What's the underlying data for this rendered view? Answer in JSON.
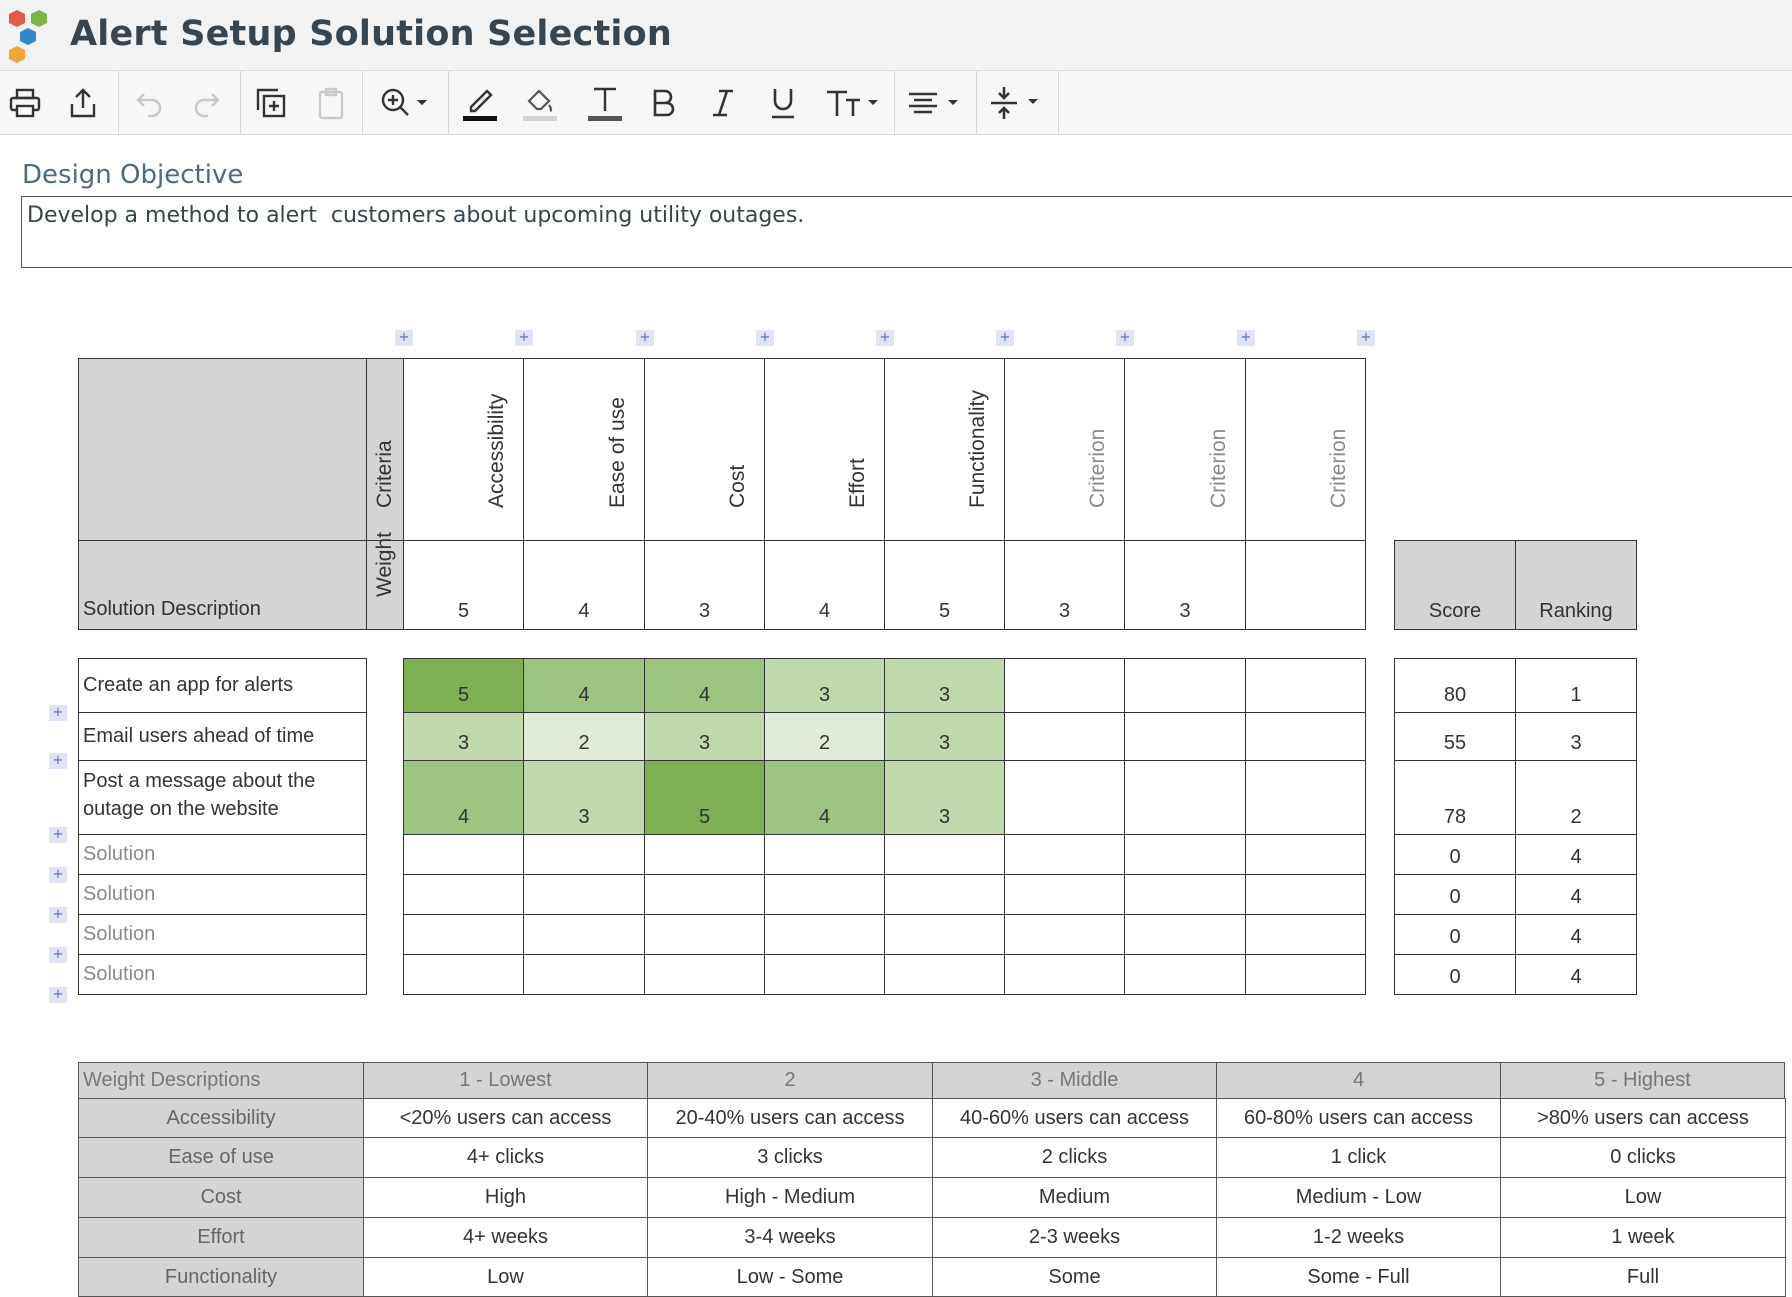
{
  "app": {
    "title": "Alert Setup Solution Selection"
  },
  "toolbar": {
    "buttons": [
      "print-icon",
      "share-icon",
      "undo-icon",
      "redo-icon",
      "duplicate-icon",
      "paste-icon",
      "zoom-icon",
      "pen-color-icon",
      "highlight-icon",
      "text-color-icon",
      "bold-icon",
      "italic-icon",
      "underline-icon",
      "font-size-icon",
      "align-icon",
      "spacing-icon"
    ]
  },
  "objective": {
    "heading": "Design Objective",
    "text": "Develop a method to alert  customers about upcoming utility outages."
  },
  "matrix": {
    "criteria_label": "Criteria",
    "weight_label": "Weight",
    "solution_header": "Solution Description",
    "score_header": "Score",
    "ranking_header": "Ranking",
    "criteria": [
      {
        "name": "Accessibility",
        "weight": "5",
        "placeholder": false
      },
      {
        "name": "Ease of use",
        "weight": "4",
        "placeholder": false
      },
      {
        "name": "Cost",
        "weight": "3",
        "placeholder": false
      },
      {
        "name": "Effort",
        "weight": "4",
        "placeholder": false
      },
      {
        "name": "Functionality",
        "weight": "5",
        "placeholder": false
      },
      {
        "name": "Criterion",
        "weight": "3",
        "placeholder": true
      },
      {
        "name": "Criterion",
        "weight": "3",
        "placeholder": true
      },
      {
        "name": "Criterion",
        "weight": "",
        "placeholder": true
      }
    ],
    "solutions": [
      {
        "name": "Create an app for alerts",
        "ratings": [
          "5",
          "4",
          "4",
          "3",
          "3",
          "",
          "",
          ""
        ],
        "score": "80",
        "ranking": "1",
        "placeholder": false
      },
      {
        "name": "Email users ahead of time",
        "ratings": [
          "3",
          "2",
          "3",
          "2",
          "3",
          "",
          "",
          ""
        ],
        "score": "55",
        "ranking": "3",
        "placeholder": false
      },
      {
        "name": "Post a message about the outage on the website",
        "ratings": [
          "4",
          "3",
          "5",
          "4",
          "3",
          "",
          "",
          ""
        ],
        "score": "78",
        "ranking": "2",
        "placeholder": false
      },
      {
        "name": "Solution",
        "ratings": [
          "",
          "",
          "",
          "",
          "",
          "",
          "",
          ""
        ],
        "score": "0",
        "ranking": "4",
        "placeholder": true
      },
      {
        "name": "Solution",
        "ratings": [
          "",
          "",
          "",
          "",
          "",
          "",
          "",
          ""
        ],
        "score": "0",
        "ranking": "4",
        "placeholder": true
      },
      {
        "name": "Solution",
        "ratings": [
          "",
          "",
          "",
          "",
          "",
          "",
          "",
          ""
        ],
        "score": "0",
        "ranking": "4",
        "placeholder": true
      },
      {
        "name": "Solution",
        "ratings": [
          "",
          "",
          "",
          "",
          "",
          "",
          "",
          ""
        ],
        "score": "0",
        "ranking": "4",
        "placeholder": true
      }
    ],
    "rating_colors": {
      "5": "#7daf55",
      "4": "#9cc581",
      "3": "#bfd9ac",
      "2": "#e1ecd7"
    }
  },
  "weight_descriptions": {
    "header": [
      "Weight Descriptions",
      "1 - Lowest",
      "2",
      "3 - Middle",
      "4",
      "5 - Highest"
    ],
    "rows": [
      [
        "Accessibility",
        "<20% users can access",
        "20-40% users can access",
        "40-60% users can access",
        "60-80% users can access",
        ">80% users can access"
      ],
      [
        "Ease of use",
        "4+ clicks",
        "3 clicks",
        "2 clicks",
        "1 click",
        "0 clicks"
      ],
      [
        "Cost",
        "High",
        "High - Medium",
        "Medium",
        "Medium - Low",
        "Low"
      ],
      [
        "Effort",
        "4+ weeks",
        "3-4 weeks",
        "2-3 weeks",
        "1-2 weeks",
        "1 week"
      ],
      [
        "Functionality",
        "Low",
        "Low - Some",
        "Some",
        "Some - Full",
        "Full"
      ]
    ]
  }
}
